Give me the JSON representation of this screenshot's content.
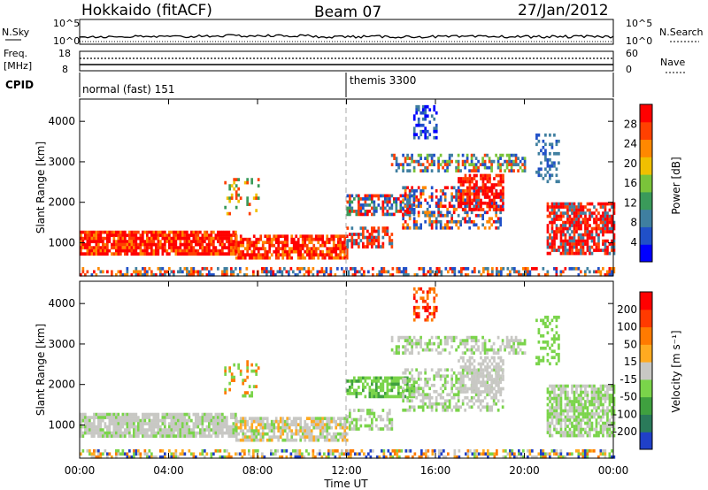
{
  "header": {
    "station": "Hokkaido (fitACF)",
    "beam": "Beam 07",
    "date": "27/Jan/2012"
  },
  "top_panels": {
    "nsky_label": "N.Sky",
    "nsearch_label": "N.Search",
    "freq_label": "Freq.",
    "freq_unit": "[MHz]",
    "nave_label": "Nave",
    "cpid_label": "CPID",
    "nsky_ticks": [
      "10^5",
      "10^0"
    ],
    "nsearch_ticks": [
      "10^5",
      "10^0"
    ],
    "freq_ticks": [
      "18",
      "8"
    ],
    "nave_ticks": [
      "60",
      "0"
    ],
    "cpid_segments": [
      {
        "label": "normal (fast) 151",
        "start_hour": 0
      },
      {
        "label": "themis 3300",
        "start_hour": 12
      }
    ]
  },
  "chart_data": [
    {
      "type": "heatmap",
      "name": "power",
      "ylabel": "Slant Range [km]",
      "xlabel": "Time UT",
      "x_ticks": [
        "00:00",
        "04:00",
        "08:00",
        "12:00",
        "16:00",
        "20:00",
        "00:00"
      ],
      "x_range_hours": [
        0,
        24
      ],
      "y_ticks": [
        1000,
        2000,
        3000,
        4000
      ],
      "y_range_km": [
        180,
        4550
      ],
      "colorbar_label": "Power [dB]",
      "colorbar_ticks": [
        "28",
        "24",
        "20",
        "16",
        "12",
        "8",
        "4"
      ],
      "colorbar_colors": [
        "#0000ff",
        "#2050c8",
        "#3f7fa0",
        "#3a9a5a",
        "#7ac43a",
        "#f0c000",
        "#ff8800",
        "#ff4000",
        "#ff0000"
      ]
    },
    {
      "type": "heatmap",
      "name": "velocity",
      "ylabel": "Slant Range [km]",
      "xlabel": "Time UT",
      "x_ticks": [
        "00:00",
        "04:00",
        "08:00",
        "12:00",
        "16:00",
        "20:00",
        "00:00"
      ],
      "x_range_hours": [
        0,
        24
      ],
      "y_ticks": [
        1000,
        2000,
        3000,
        4000
      ],
      "y_range_km": [
        180,
        4550
      ],
      "colorbar_label": "Velocity [m s⁻¹]",
      "colorbar_ticks": [
        "200",
        "100",
        "50",
        "15",
        "-15",
        "-50",
        "-100",
        "-200"
      ],
      "colorbar_colors": [
        "#2040c8",
        "#2a7a5a",
        "#3fa03f",
        "#7ad44a",
        "#c8c8c4",
        "#ffaa20",
        "#ff7a00",
        "#ff3a00",
        "#ff0000"
      ]
    }
  ]
}
